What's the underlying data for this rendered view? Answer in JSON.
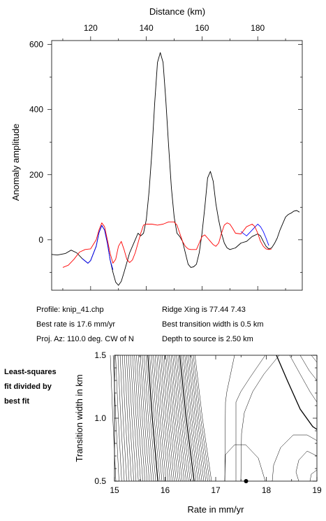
{
  "chart_data": [
    {
      "type": "line",
      "xlabel": "Distance (km)",
      "ylabel": "Anomaly amplitude",
      "xlim": [
        106,
        196
      ],
      "ylim": [
        -155,
        612
      ],
      "xticks": [
        120,
        140,
        160,
        180
      ],
      "yticks": [
        0,
        200,
        400,
        600
      ],
      "grid": false,
      "series": [
        {
          "color": "#000000",
          "points": [
            [
              106,
              -45
            ],
            [
              108,
              -47
            ],
            [
              111,
              -42
            ],
            [
              113,
              -32
            ],
            [
              115,
              -40
            ],
            [
              117,
              -58
            ],
            [
              119,
              -72
            ],
            [
              120,
              -64
            ],
            [
              122,
              -20
            ],
            [
              123,
              22
            ],
            [
              124,
              44
            ],
            [
              125,
              30
            ],
            [
              126,
              -10
            ],
            [
              127,
              -62
            ],
            [
              128,
              -100
            ],
            [
              129,
              -130
            ],
            [
              130,
              -140
            ],
            [
              131,
              -128
            ],
            [
              132,
              -100
            ],
            [
              134,
              -40
            ],
            [
              136,
              0
            ],
            [
              137,
              20
            ],
            [
              138,
              12
            ],
            [
              139,
              20
            ],
            [
              140,
              62
            ],
            [
              141,
              150
            ],
            [
              142,
              270
            ],
            [
              143,
              420
            ],
            [
              144,
              545
            ],
            [
              145,
              575
            ],
            [
              146,
              545
            ],
            [
              147,
              430
            ],
            [
              148,
              290
            ],
            [
              149,
              160
            ],
            [
              150,
              70
            ],
            [
              151,
              20
            ],
            [
              152,
              10
            ],
            [
              153,
              -5
            ],
            [
              154,
              -40
            ],
            [
              155,
              -75
            ],
            [
              156,
              -85
            ],
            [
              157,
              -83
            ],
            [
              158,
              -75
            ],
            [
              159,
              -40
            ],
            [
              160,
              20
            ],
            [
              161,
              100
            ],
            [
              162,
              190
            ],
            [
              163,
              210
            ],
            [
              164,
              180
            ],
            [
              165,
              110
            ],
            [
              166,
              60
            ],
            [
              167,
              20
            ],
            [
              168,
              -10
            ],
            [
              169,
              -25
            ],
            [
              170,
              -30
            ],
            [
              172,
              -25
            ],
            [
              174,
              -10
            ],
            [
              176,
              -5
            ],
            [
              178,
              10
            ],
            [
              180,
              18
            ],
            [
              181,
              12
            ],
            [
              182,
              -5
            ],
            [
              183,
              -20
            ],
            [
              184,
              -28
            ],
            [
              185,
              -25
            ],
            [
              186,
              -12
            ],
            [
              187,
              5
            ],
            [
              188,
              30
            ],
            [
              189,
              50
            ],
            [
              190,
              70
            ],
            [
              191,
              78
            ],
            [
              192,
              82
            ],
            [
              193,
              88
            ],
            [
              194,
              90
            ],
            [
              195,
              85
            ]
          ]
        },
        {
          "color": "#0000ff",
          "points": [
            [
              117,
              -58
            ],
            [
              119,
              -72
            ],
            [
              120,
              -64
            ],
            [
              122,
              -20
            ],
            [
              123,
              22
            ],
            [
              124,
              44
            ],
            [
              125,
              30
            ],
            [
              126,
              -10
            ],
            [
              127,
              -62
            ],
            [
              128,
              -92
            ]
          ]
        },
        {
          "color": "#0000ff",
          "points": [
            [
              174,
              25
            ],
            [
              176,
              12
            ],
            [
              178,
              30
            ],
            [
              180,
              48
            ],
            [
              181,
              40
            ],
            [
              182,
              25
            ],
            [
              183,
              5
            ],
            [
              184,
              -18
            ]
          ]
        },
        {
          "color": "#ff0000",
          "points": [
            [
              110,
              -85
            ],
            [
              112,
              -78
            ],
            [
              114,
              -60
            ],
            [
              116,
              -38
            ],
            [
              118,
              -30
            ],
            [
              120,
              -28
            ],
            [
              122,
              0
            ],
            [
              123,
              30
            ],
            [
              124,
              52
            ],
            [
              125,
              40
            ],
            [
              126,
              0
            ],
            [
              127,
              -42
            ],
            [
              128,
              -72
            ],
            [
              129,
              -60
            ],
            [
              130,
              -20
            ],
            [
              131,
              -5
            ],
            [
              132,
              -30
            ],
            [
              133,
              -60
            ],
            [
              134,
              -70
            ],
            [
              135,
              -62
            ],
            [
              136,
              -40
            ],
            [
              137,
              -10
            ],
            [
              138,
              20
            ],
            [
              139,
              45
            ],
            [
              140,
              48
            ],
            [
              142,
              48
            ],
            [
              144,
              45
            ],
            [
              146,
              48
            ],
            [
              148,
              55
            ],
            [
              150,
              55
            ],
            [
              151,
              45
            ],
            [
              152,
              20
            ],
            [
              153,
              -5
            ],
            [
              154,
              -20
            ],
            [
              155,
              -28
            ],
            [
              156,
              -30
            ],
            [
              157,
              -30
            ],
            [
              158,
              -30
            ],
            [
              159,
              -10
            ],
            [
              160,
              10
            ],
            [
              161,
              15
            ],
            [
              162,
              5
            ],
            [
              163,
              -5
            ],
            [
              164,
              -15
            ],
            [
              165,
              -20
            ],
            [
              166,
              -10
            ],
            [
              167,
              20
            ],
            [
              168,
              45
            ],
            [
              169,
              52
            ],
            [
              170,
              48
            ],
            [
              171,
              35
            ],
            [
              172,
              20
            ],
            [
              174,
              18
            ],
            [
              176,
              40
            ],
            [
              178,
              48
            ],
            [
              179,
              40
            ],
            [
              180,
              20
            ],
            [
              181,
              -5
            ],
            [
              182,
              -20
            ],
            [
              183,
              -28
            ],
            [
              184,
              -30
            ],
            [
              185,
              -28
            ]
          ]
        }
      ]
    },
    {
      "type": "contour",
      "xlabel": "Rate in mm/yr",
      "ylabel": "Transition width in km",
      "xlim": [
        15,
        19
      ],
      "ylim": [
        0.5,
        1.5
      ],
      "xticks": [
        15,
        16,
        17,
        18,
        19
      ],
      "yticks": [
        0.5,
        1.0,
        1.5
      ],
      "best_fit": {
        "rate": 17.6,
        "width": 0.5
      }
    }
  ],
  "info": {
    "profile": "Profile: knip_41.chp",
    "best_rate": "Best rate is 17.6 mm/yr",
    "proj_az": "Proj. Az: 110.0 deg. CW of N",
    "ridge_xing": "Ridge Xing is 77.44 7.43",
    "best_width": "Best transition width is 0.5 km",
    "depth": "Depth to source is   2.50 km"
  },
  "note_lines": [
    "Least-squares",
    "fit divided by",
    "best fit"
  ]
}
